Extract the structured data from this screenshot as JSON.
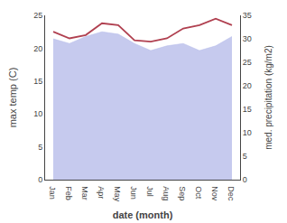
{
  "chart_data": {
    "type": "line",
    "categories": [
      "Jan",
      "Feb",
      "Mar",
      "Apr",
      "May",
      "Jun",
      "Jul",
      "Aug",
      "Sep",
      "Oct",
      "Nov",
      "Dec"
    ],
    "xlabel": "date (month)",
    "ylabel": "max temp (C)",
    "y2label": "med. precipitation (kg/m2)",
    "series": [
      {
        "type": "area",
        "axis": "y2",
        "color": "#b3b8e8",
        "values": [
          30.0,
          29.0,
          30.5,
          31.5,
          31.0,
          29.0,
          27.5,
          28.5,
          29.0,
          27.5,
          28.5,
          30.5
        ]
      },
      {
        "type": "line",
        "color": "#b04050",
        "values": [
          22.5,
          21.5,
          22.0,
          23.8,
          23.5,
          21.2,
          21.0,
          21.5,
          23.0,
          23.5,
          24.5,
          23.5
        ]
      }
    ],
    "ylim": [
      0,
      25
    ],
    "yticks": [
      0,
      5,
      10,
      15,
      20,
      25
    ],
    "y2lim": [
      0,
      35
    ],
    "y2ticks": [
      0,
      5,
      10,
      15,
      20,
      25,
      30,
      35
    ],
    "grid": false
  }
}
